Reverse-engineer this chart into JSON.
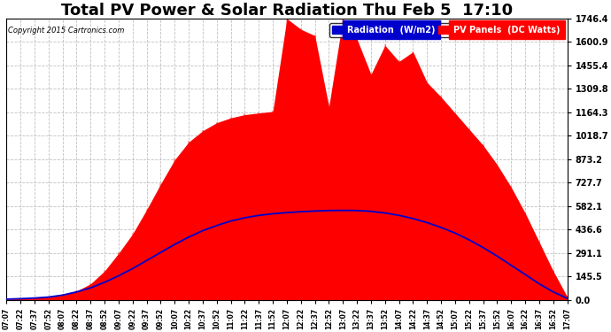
{
  "title": "Total PV Power & Solar Radiation Thu Feb 5  17:10",
  "copyright": "Copyright 2015 Cartronics.com",
  "legend_radiation": "Radiation  (W/m2)",
  "legend_pv": "PV Panels  (DC Watts)",
  "yticks": [
    0.0,
    145.5,
    291.1,
    436.6,
    582.1,
    727.7,
    873.2,
    1018.7,
    1164.3,
    1309.8,
    1455.4,
    1600.9,
    1746.4
  ],
  "ymax": 1746.4,
  "background_color": "#ffffff",
  "plot_bg_color": "#ffffff",
  "grid_color": "#c0c0c0",
  "radiation_color": "#0000cc",
  "pv_color": "#ff0000",
  "title_fontsize": 13,
  "xtick_labels": [
    "07:07",
    "07:22",
    "07:37",
    "07:52",
    "08:07",
    "08:22",
    "08:37",
    "08:52",
    "09:07",
    "09:22",
    "09:37",
    "09:52",
    "10:07",
    "10:22",
    "10:37",
    "10:52",
    "11:07",
    "11:22",
    "11:37",
    "11:52",
    "12:07",
    "12:22",
    "12:37",
    "12:52",
    "13:07",
    "13:22",
    "13:37",
    "13:52",
    "14:07",
    "14:22",
    "14:37",
    "14:52",
    "15:07",
    "15:22",
    "15:37",
    "15:52",
    "16:07",
    "16:22",
    "16:37",
    "16:52",
    "17:07"
  ],
  "pv_values": [
    5,
    8,
    12,
    18,
    30,
    55,
    100,
    180,
    290,
    410,
    560,
    720,
    870,
    980,
    1050,
    1100,
    1130,
    1150,
    1160,
    1170,
    1746,
    1680,
    1640,
    1200,
    1746,
    1620,
    1400,
    1580,
    1480,
    1540,
    1350,
    1260,
    1160,
    1060,
    960,
    840,
    700,
    540,
    360,
    180,
    20
  ],
  "radiation_values": [
    5,
    8,
    12,
    18,
    30,
    50,
    75,
    110,
    150,
    195,
    245,
    295,
    345,
    390,
    430,
    462,
    490,
    510,
    525,
    535,
    542,
    548,
    552,
    555,
    556,
    555,
    550,
    540,
    525,
    505,
    480,
    450,
    415,
    373,
    325,
    272,
    215,
    158,
    100,
    50,
    10
  ]
}
